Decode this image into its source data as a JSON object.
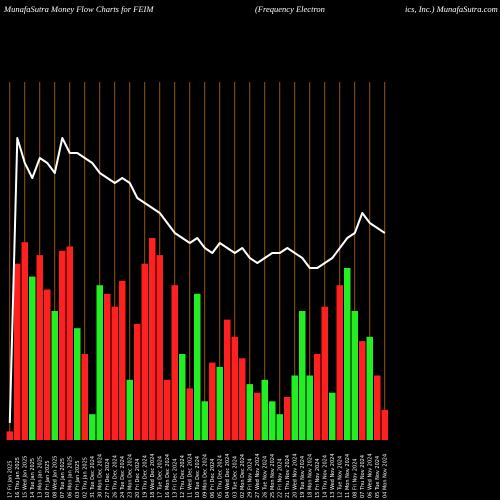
{
  "header": {
    "title_left": "MunafaSutra  Money Flow  Charts for FEIM",
    "title_mid": "(Frequency Electron",
    "title_right": "ics, Inc.) MunafaSutra.com"
  },
  "chart_data": {
    "type": "bar",
    "title": "MunafaSutra  Money Flow  Charts for FEIM (Frequency Electronics, Inc.) MunafaSutra.com",
    "categories": [
      "17 Fri Jan 2025",
      "16 Thu Jan 2025",
      "15 Wed Jan 2025",
      "14 Tue Jan 2025",
      "13 Mon Jan 2025",
      "10 Fri Jan 2025",
      "08 Wed Jan 2025",
      "07 Tue Jan 2025",
      "06 Mon Jan 2025",
      "03 Fri Jan 2025",
      "02 Thu Jan 2025",
      "31 Tue Dec 2024",
      "30 Mon Dec 2024",
      "27 Fri Dec 2024",
      "26 Thu Dec 2024",
      "24 Tue Dec 2024",
      "23 Mon Dec 2024",
      "20 Fri Dec 2024",
      "19 Thu Dec 2024",
      "18 Wed Dec 2024",
      "17 Tue Dec 2024",
      "16 Mon Dec 2024",
      "13 Fri Dec 2024",
      "12 Thu Dec 2024",
      "11 Wed Dec 2024",
      "10 Tue Dec 2024",
      "09 Mon Dec 2024",
      "06 Fri Dec 2024",
      "05 Thu Dec 2024",
      "04 Wed Dec 2024",
      "03 Tue Dec 2024",
      "02 Mon Dec 2024",
      "29 Fri Nov 2024",
      "27 Wed Nov 2024",
      "26 Tue Nov 2024",
      "25 Mon Nov 2024",
      "22 Fri Nov 2024",
      "21 Thu Nov 2024",
      "20 Wed Nov 2024",
      "19 Tue Nov 2024",
      "18 Mon Nov 2024",
      "15 Fri Nov 2024",
      "14 Thu Nov 2024",
      "13 Wed Nov 2024",
      "12 Tue Nov 2024",
      "11 Mon Nov 2024",
      "08 Fri Nov 2024",
      "07 Thu Nov 2024",
      "06 Wed Nov 2024",
      "05 Tue Nov 2024",
      "04 Mon Nov 2024"
    ],
    "bar_colors": [
      "red",
      "red",
      "red",
      "green",
      "red",
      "red",
      "green",
      "red",
      "red",
      "green",
      "red",
      "green",
      "green",
      "red",
      "red",
      "red",
      "green",
      "red",
      "red",
      "red",
      "red",
      "red",
      "red",
      "green",
      "red",
      "green",
      "green",
      "red",
      "green",
      "red",
      "red",
      "red",
      "green",
      "red",
      "green",
      "green",
      "green",
      "red",
      "green",
      "green",
      "green",
      "red",
      "red",
      "green",
      "red",
      "green",
      "green",
      "red",
      "green",
      "red",
      "red"
    ],
    "colors": {
      "red": "#ff2020",
      "green": "#22ee22",
      "price_line": "#ffffff",
      "gridline": "#b86a0a"
    },
    "series": [
      {
        "type": "bar",
        "values": [
          2,
          41,
          46,
          38,
          43,
          35,
          30,
          44,
          45,
          26,
          20,
          6,
          36,
          34,
          31,
          37,
          14,
          27,
          41,
          47,
          43,
          14,
          36,
          20,
          12,
          34,
          9,
          18,
          17,
          28,
          24,
          19,
          13,
          11,
          14,
          9,
          6,
          10,
          15,
          30,
          15,
          20,
          31,
          11,
          36,
          40,
          30,
          23,
          24,
          15,
          7
        ]
      },
      {
        "type": "line",
        "values": [
          3,
          60,
          55,
          52,
          56,
          55,
          53,
          60,
          57,
          57,
          56,
          55,
          53,
          52,
          51,
          52,
          51,
          48,
          47,
          46,
          45,
          43,
          41,
          40,
          39,
          40,
          38,
          37,
          39,
          38,
          37,
          38,
          36,
          35,
          36,
          37,
          37,
          38,
          37,
          36,
          34,
          34,
          35,
          36,
          38,
          40,
          41,
          45,
          43,
          42,
          41
        ]
      }
    ],
    "grid": true,
    "gridlines": "vertical"
  }
}
